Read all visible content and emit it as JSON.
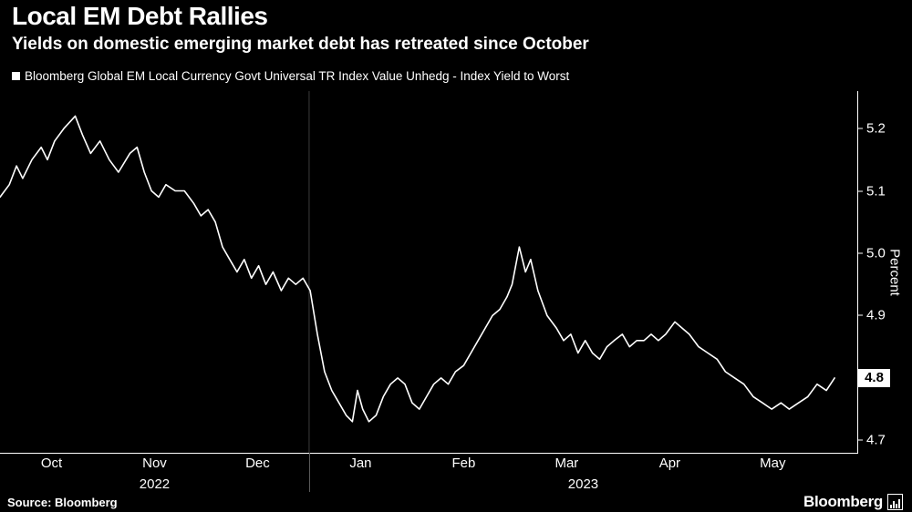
{
  "header": {
    "title": "Local EM Debt Rallies",
    "subtitle": "Yields on domestic emerging market debt has retreated since October"
  },
  "legend": {
    "label": "Bloomberg Global EM Local Currency Govt Universal TR Index Value Unhedg - Index Yield to Worst"
  },
  "footer": {
    "source": "Source: Bloomberg",
    "logo_text": "Bloomberg"
  },
  "colors": {
    "background": "#000000",
    "line": "#ffffff",
    "text": "#ffffff",
    "axis": "#ffffff",
    "year_divider": "#3d3d3d",
    "last_value_bg": "#ffffff",
    "last_value_text": "#000000"
  },
  "chart_data": {
    "type": "line",
    "title": "Local EM Debt Rallies",
    "series_name": "Bloomberg Global EM Local Currency Govt Universal TR Index Value Unhedg - Index Yield to Worst",
    "ylabel": "Percent",
    "x_unit": "months since 2022-10-01",
    "xlim": [
      0,
      8.32
    ],
    "ylim": [
      4.68,
      5.26
    ],
    "y_ticks": [
      4.7,
      4.8,
      4.9,
      5.0,
      5.1,
      5.2
    ],
    "x_ticks": [
      {
        "label": "Oct",
        "x": 0.5
      },
      {
        "label": "Nov",
        "x": 1.5
      },
      {
        "label": "Dec",
        "x": 2.5
      },
      {
        "label": "Jan",
        "x": 3.5
      },
      {
        "label": "Feb",
        "x": 4.5
      },
      {
        "label": "Mar",
        "x": 5.5
      },
      {
        "label": "Apr",
        "x": 6.5
      },
      {
        "label": "May",
        "x": 7.5
      }
    ],
    "year_labels": [
      {
        "label": "2022",
        "x": 1.5
      },
      {
        "label": "2023",
        "x": 5.66
      }
    ],
    "year_divider_x": 3.0,
    "last_value": "4.8",
    "grid": false,
    "legend_position": "top-left",
    "points": [
      [
        0.0,
        5.09
      ],
      [
        0.09,
        5.11
      ],
      [
        0.16,
        5.14
      ],
      [
        0.22,
        5.12
      ],
      [
        0.31,
        5.15
      ],
      [
        0.4,
        5.17
      ],
      [
        0.46,
        5.15
      ],
      [
        0.53,
        5.18
      ],
      [
        0.62,
        5.2
      ],
      [
        0.73,
        5.22
      ],
      [
        0.8,
        5.19
      ],
      [
        0.88,
        5.16
      ],
      [
        0.97,
        5.18
      ],
      [
        1.06,
        5.15
      ],
      [
        1.15,
        5.13
      ],
      [
        1.26,
        5.16
      ],
      [
        1.33,
        5.17
      ],
      [
        1.4,
        5.13
      ],
      [
        1.47,
        5.1
      ],
      [
        1.54,
        5.09
      ],
      [
        1.61,
        5.11
      ],
      [
        1.7,
        5.1
      ],
      [
        1.79,
        5.1
      ],
      [
        1.88,
        5.08
      ],
      [
        1.95,
        5.06
      ],
      [
        2.02,
        5.07
      ],
      [
        2.09,
        5.05
      ],
      [
        2.16,
        5.01
      ],
      [
        2.23,
        4.99
      ],
      [
        2.3,
        4.97
      ],
      [
        2.37,
        4.99
      ],
      [
        2.44,
        4.96
      ],
      [
        2.51,
        4.98
      ],
      [
        2.58,
        4.95
      ],
      [
        2.65,
        4.97
      ],
      [
        2.73,
        4.94
      ],
      [
        2.8,
        4.96
      ],
      [
        2.87,
        4.95
      ],
      [
        2.94,
        4.96
      ],
      [
        3.01,
        4.94
      ],
      [
        3.08,
        4.87
      ],
      [
        3.15,
        4.81
      ],
      [
        3.22,
        4.78
      ],
      [
        3.29,
        4.76
      ],
      [
        3.36,
        4.74
      ],
      [
        3.42,
        4.73
      ],
      [
        3.47,
        4.78
      ],
      [
        3.52,
        4.75
      ],
      [
        3.58,
        4.73
      ],
      [
        3.65,
        4.74
      ],
      [
        3.72,
        4.77
      ],
      [
        3.79,
        4.79
      ],
      [
        3.86,
        4.8
      ],
      [
        3.93,
        4.79
      ],
      [
        4.0,
        4.76
      ],
      [
        4.07,
        4.75
      ],
      [
        4.14,
        4.77
      ],
      [
        4.21,
        4.79
      ],
      [
        4.28,
        4.8
      ],
      [
        4.35,
        4.79
      ],
      [
        4.42,
        4.81
      ],
      [
        4.5,
        4.82
      ],
      [
        4.57,
        4.84
      ],
      [
        4.64,
        4.86
      ],
      [
        4.71,
        4.88
      ],
      [
        4.78,
        4.9
      ],
      [
        4.85,
        4.91
      ],
      [
        4.92,
        4.93
      ],
      [
        4.97,
        4.95
      ],
      [
        5.04,
        5.01
      ],
      [
        5.1,
        4.97
      ],
      [
        5.15,
        4.99
      ],
      [
        5.22,
        4.94
      ],
      [
        5.31,
        4.9
      ],
      [
        5.4,
        4.88
      ],
      [
        5.47,
        4.86
      ],
      [
        5.54,
        4.87
      ],
      [
        5.61,
        4.84
      ],
      [
        5.68,
        4.86
      ],
      [
        5.75,
        4.84
      ],
      [
        5.82,
        4.83
      ],
      [
        5.89,
        4.85
      ],
      [
        5.96,
        4.86
      ],
      [
        6.04,
        4.87
      ],
      [
        6.11,
        4.85
      ],
      [
        6.18,
        4.86
      ],
      [
        6.25,
        4.86
      ],
      [
        6.32,
        4.87
      ],
      [
        6.39,
        4.86
      ],
      [
        6.46,
        4.87
      ],
      [
        6.55,
        4.89
      ],
      [
        6.62,
        4.88
      ],
      [
        6.69,
        4.87
      ],
      [
        6.78,
        4.85
      ],
      [
        6.87,
        4.84
      ],
      [
        6.96,
        4.83
      ],
      [
        7.04,
        4.81
      ],
      [
        7.13,
        4.8
      ],
      [
        7.22,
        4.79
      ],
      [
        7.31,
        4.77
      ],
      [
        7.4,
        4.76
      ],
      [
        7.49,
        4.75
      ],
      [
        7.58,
        4.76
      ],
      [
        7.66,
        4.75
      ],
      [
        7.75,
        4.76
      ],
      [
        7.84,
        4.77
      ],
      [
        7.93,
        4.79
      ],
      [
        8.02,
        4.78
      ],
      [
        8.1,
        4.8
      ]
    ]
  }
}
